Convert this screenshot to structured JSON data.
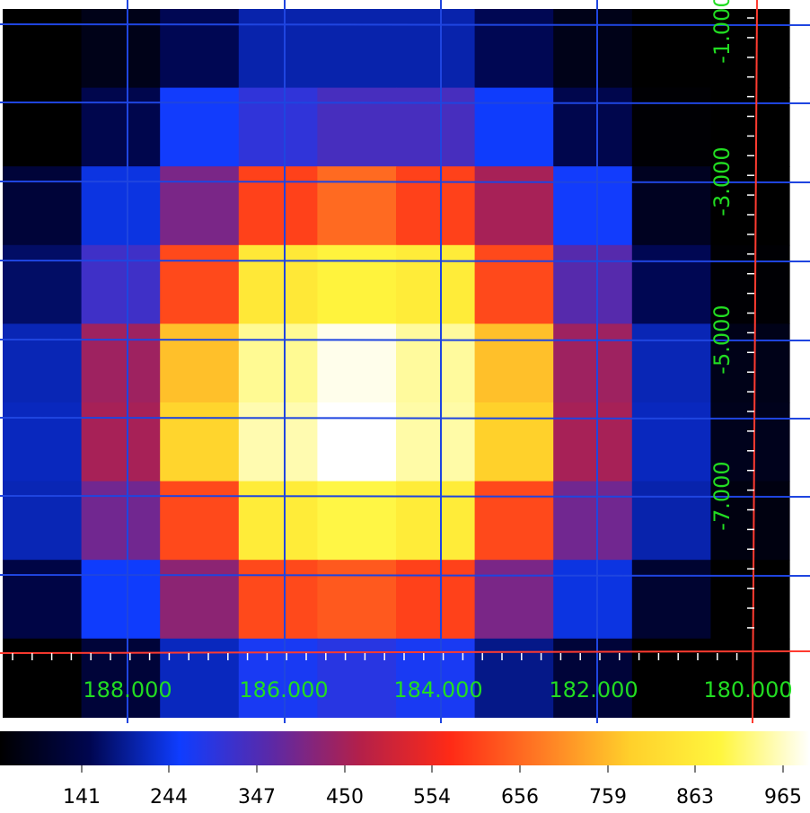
{
  "chart_data": {
    "type": "heatmap",
    "title": "",
    "xlabel": "",
    "ylabel": "",
    "x_ticks": [
      "188.000",
      "186.000",
      "184.000",
      "182.000",
      "180.000"
    ],
    "y_ticks": [
      "-1.000",
      "-3.000",
      "-5.000",
      "-7.000"
    ],
    "colorbar_ticks": [
      "141",
      "244",
      "347",
      "450",
      "554",
      "656",
      "759",
      "863",
      "965"
    ],
    "colormap": [
      "#000000",
      "#000650",
      "#0f3dff",
      "#5a29a8",
      "#b3204a",
      "#ff2a16",
      "#ff7a24",
      "#ffd02b",
      "#fff63e",
      "#ffffff"
    ],
    "grid_color": "#1f45e0",
    "tick_label_color": "#22dd22",
    "axis_line_color": "#ff3b30",
    "matrix": [
      [
        50,
        120,
        190,
        240,
        240,
        240,
        190,
        120,
        55,
        30
      ],
      [
        90,
        185,
        290,
        330,
        360,
        360,
        285,
        185,
        95,
        55
      ],
      [
        160,
        270,
        420,
        610,
        660,
        610,
        470,
        290,
        130,
        70
      ],
      [
        200,
        350,
        620,
        840,
        870,
        850,
        620,
        380,
        190,
        95
      ],
      [
        245,
        460,
        760,
        920,
        965,
        925,
        760,
        460,
        245,
        120
      ],
      [
        250,
        470,
        790,
        935,
        975,
        930,
        780,
        470,
        250,
        125
      ],
      [
        245,
        410,
        620,
        850,
        880,
        850,
        620,
        410,
        240,
        110
      ],
      [
        175,
        285,
        440,
        620,
        640,
        610,
        420,
        270,
        150,
        75
      ],
      [
        90,
        160,
        250,
        300,
        320,
        300,
        220,
        160,
        90,
        50
      ]
    ]
  }
}
